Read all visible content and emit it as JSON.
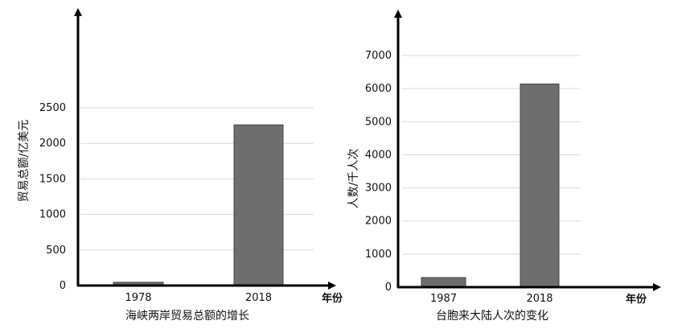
{
  "chart_data": [
    {
      "type": "bar",
      "title": "海峡两岸贸易总额的增长",
      "xlabel": "年份",
      "ylabel": "贸易总额/亿美元",
      "categories": [
        "1978",
        "2018"
      ],
      "values": [
        46,
        2260
      ],
      "ylim": [
        0,
        2500
      ],
      "yticks": [
        "0",
        "500",
        "1000",
        "1500",
        "2000",
        "2500"
      ],
      "grid": true,
      "bar_color": "#6e6e6e"
    },
    {
      "type": "bar",
      "title": "台胞来大陆人次的变化",
      "xlabel": "年份",
      "ylabel": "人数/千人次",
      "categories": [
        "1987",
        "2018"
      ],
      "values": [
        290,
        6140
      ],
      "ylim": [
        0,
        7000
      ],
      "yticks": [
        "0",
        "1000",
        "2000",
        "3000",
        "4000",
        "5000",
        "6000",
        "7000"
      ],
      "grid": true,
      "bar_color": "#6e6e6e"
    }
  ]
}
